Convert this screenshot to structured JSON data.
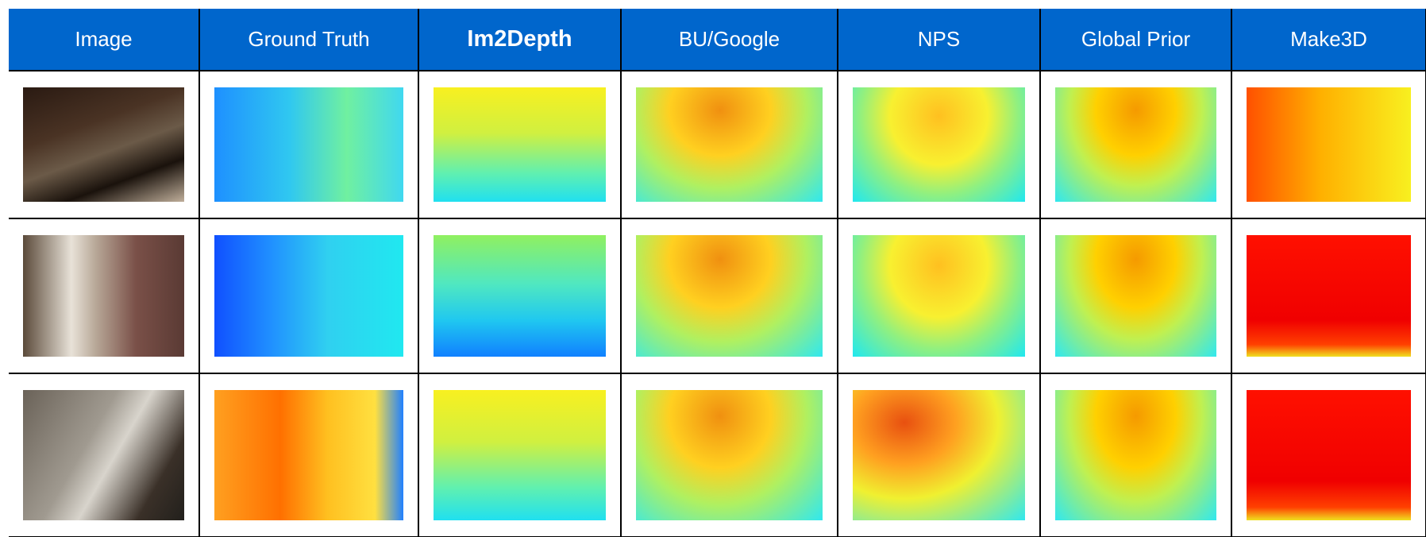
{
  "table": {
    "header": [
      "Image",
      "Ground Truth",
      "Im2Depth",
      "BU/Google",
      "NPS",
      "Global Prior",
      "Make3D"
    ]
  }
}
